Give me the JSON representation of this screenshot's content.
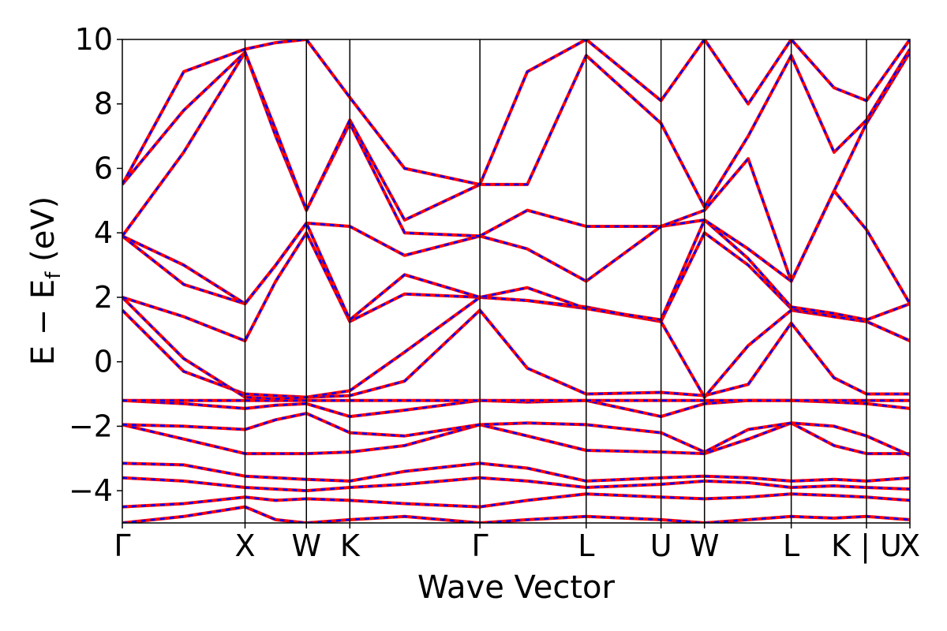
{
  "chart_data": {
    "type": "line",
    "title": "",
    "xlabel": "Wave Vector",
    "ylabel": {
      "prefix": "E − E",
      "subscript": "f",
      "suffix": " (eV)"
    },
    "ylim": [
      -5,
      10
    ],
    "yticks": [
      10,
      8,
      6,
      4,
      2,
      0,
      -2,
      -4
    ],
    "ytick_labels": [
      "10",
      "8",
      "6",
      "4",
      "2",
      "0",
      "−2",
      "−4"
    ],
    "kpath": [
      {
        "label": "Γ",
        "x": 0.0
      },
      {
        "label": "X",
        "x": 1.0
      },
      {
        "label": "W",
        "x": 1.5
      },
      {
        "label": "K",
        "x": 1.854
      },
      {
        "label": "Γ",
        "x": 2.914
      },
      {
        "label": "L",
        "x": 3.78
      },
      {
        "label": "U",
        "x": 4.39
      },
      {
        "label": "W",
        "x": 4.744
      },
      {
        "label": "L",
        "x": 5.451
      },
      {
        "label": "K | U",
        "x": 6.064
      },
      {
        "label": "X",
        "x": 6.418
      }
    ],
    "xlim": [
      0.0,
      6.418
    ],
    "grid": false,
    "legend": "none",
    "colors": {
      "series_a": "#ff0000",
      "series_b": "#0000ff",
      "kpoint_line": "#000000"
    },
    "series": [
      {
        "x": [
          0.0,
          0.5,
          1.0,
          1.25,
          1.5,
          1.854,
          2.3,
          2.914,
          3.3,
          3.78,
          4.39,
          4.744,
          5.1,
          5.451,
          5.8,
          6.064,
          6.418
        ],
        "y": [
          -5.0,
          -4.8,
          -4.5,
          -4.9,
          -5.0,
          -4.9,
          -4.8,
          -5.0,
          -4.9,
          -4.8,
          -4.9,
          -5.0,
          -4.9,
          -4.8,
          -4.85,
          -4.8,
          -4.9
        ]
      },
      {
        "x": [
          0.0,
          0.5,
          1.0,
          1.25,
          1.5,
          1.854,
          2.3,
          2.914,
          3.3,
          3.78,
          4.39,
          4.744,
          5.1,
          5.451,
          5.8,
          6.064,
          6.418
        ],
        "y": [
          -4.5,
          -4.4,
          -4.2,
          -4.3,
          -4.25,
          -4.3,
          -4.4,
          -4.5,
          -4.3,
          -4.1,
          -4.2,
          -4.25,
          -4.2,
          -4.1,
          -4.15,
          -4.2,
          -4.3
        ]
      },
      {
        "x": [
          0.0,
          0.5,
          1.0,
          1.25,
          1.5,
          1.854,
          2.3,
          2.914,
          3.3,
          3.78,
          4.39,
          4.744,
          5.1,
          5.451,
          5.8,
          6.064,
          6.418
        ],
        "y": [
          -3.6,
          -3.7,
          -3.9,
          -3.95,
          -4.0,
          -3.9,
          -3.8,
          -3.6,
          -3.7,
          -3.9,
          -3.8,
          -3.7,
          -3.75,
          -3.9,
          -3.85,
          -3.9,
          -3.95
        ]
      },
      {
        "x": [
          0.0,
          0.5,
          1.0,
          1.25,
          1.5,
          1.854,
          2.3,
          2.914,
          3.3,
          3.78,
          4.39,
          4.744,
          5.1,
          5.451,
          5.8,
          6.064,
          6.418
        ],
        "y": [
          -3.15,
          -3.2,
          -3.55,
          -3.6,
          -3.65,
          -3.7,
          -3.4,
          -3.15,
          -3.3,
          -3.7,
          -3.6,
          -3.55,
          -3.6,
          -3.7,
          -3.65,
          -3.7,
          -3.6
        ]
      },
      {
        "x": [
          0.0,
          0.5,
          1.0,
          1.25,
          1.5,
          1.854,
          2.3,
          2.914,
          3.3,
          3.78,
          4.39,
          4.744,
          5.1,
          5.451,
          5.8,
          6.064,
          6.418
        ],
        "y": [
          -1.95,
          -2.4,
          -2.85,
          -2.85,
          -2.85,
          -2.8,
          -2.6,
          -1.95,
          -2.3,
          -2.75,
          -2.8,
          -2.85,
          -2.4,
          -1.9,
          -2.6,
          -2.85,
          -2.85
        ]
      },
      {
        "x": [
          0.0,
          0.5,
          1.0,
          1.25,
          1.5,
          1.854,
          2.3,
          2.914,
          3.3,
          3.78,
          4.39,
          4.744,
          5.1,
          5.451,
          5.8,
          6.064,
          6.418
        ],
        "y": [
          -1.95,
          -2.0,
          -2.1,
          -1.8,
          -1.6,
          -2.2,
          -2.3,
          -1.95,
          -1.9,
          -1.95,
          -2.2,
          -2.8,
          -2.1,
          -1.9,
          -2.0,
          -2.3,
          -2.9
        ]
      },
      {
        "x": [
          0.0,
          0.5,
          1.0,
          1.25,
          1.5,
          1.854,
          2.3,
          2.914,
          3.3,
          3.78,
          4.39,
          4.744,
          5.1,
          5.451,
          5.8,
          6.064,
          6.418
        ],
        "y": [
          -1.2,
          -1.3,
          -1.45,
          -1.35,
          -1.3,
          -1.7,
          -1.5,
          -1.2,
          -1.25,
          -1.2,
          -1.7,
          -1.3,
          -1.2,
          -1.2,
          -1.25,
          -1.3,
          -1.45
        ]
      },
      {
        "x": [
          0.0,
          0.5,
          1.0,
          1.25,
          1.5,
          1.854,
          2.3,
          2.914,
          3.3,
          3.78,
          4.39,
          4.744,
          5.1,
          5.451,
          5.8,
          6.064,
          6.418
        ],
        "y": [
          -1.2,
          -1.2,
          -1.2,
          -1.2,
          -1.2,
          -1.2,
          -1.2,
          -1.2,
          -1.2,
          -1.2,
          -1.2,
          -1.2,
          -1.2,
          -1.2,
          -1.2,
          -1.2,
          -1.2
        ]
      },
      {
        "x": [
          0.0,
          0.5,
          1.0,
          1.25,
          1.5,
          1.854,
          2.3,
          2.914,
          3.3,
          3.78,
          4.39,
          4.744,
          5.1,
          5.451,
          5.8,
          6.064,
          6.418
        ],
        "y": [
          1.6,
          -0.3,
          -1.0,
          -1.05,
          -1.1,
          -1.05,
          -0.6,
          1.6,
          -0.2,
          -1.0,
          -0.95,
          -1.05,
          -0.7,
          1.2,
          -0.5,
          -1.0,
          -1.0
        ]
      },
      {
        "x": [
          0.0,
          0.5,
          1.0,
          1.25,
          1.5,
          1.854,
          2.3,
          2.914,
          3.3,
          3.78,
          4.39,
          4.744,
          5.1,
          5.451,
          5.8,
          6.064,
          6.418
        ],
        "y": [
          2.0,
          0.1,
          -1.1,
          -1.15,
          -1.1,
          -0.9,
          0.3,
          2.0,
          1.9,
          1.65,
          1.25,
          -1.1,
          0.5,
          1.6,
          1.4,
          1.25,
          0.65
        ]
      },
      {
        "x": [
          0.0,
          0.5,
          1.0,
          1.25,
          1.5,
          1.854,
          2.3,
          2.914,
          3.3,
          3.78,
          4.39,
          4.744,
          5.1,
          5.451,
          5.8,
          6.064,
          6.418
        ],
        "y": [
          2.0,
          1.4,
          0.65,
          2.5,
          4.0,
          1.25,
          2.1,
          2.0,
          1.9,
          1.7,
          1.25,
          4.0,
          3.0,
          1.65,
          1.4,
          1.25,
          0.65
        ]
      },
      {
        "x": [
          0.0,
          0.5,
          1.0,
          1.25,
          1.5,
          1.854,
          2.3,
          2.914,
          3.3,
          3.78,
          4.39,
          4.744,
          5.1,
          5.451,
          5.8,
          6.064,
          6.418
        ],
        "y": [
          3.9,
          2.4,
          1.8,
          3.0,
          4.3,
          1.3,
          2.7,
          2.0,
          2.3,
          1.65,
          1.3,
          4.4,
          3.2,
          1.7,
          1.5,
          1.3,
          1.8
        ]
      },
      {
        "x": [
          0.0,
          0.5,
          1.0,
          1.25,
          1.5,
          1.854,
          2.3,
          2.914,
          3.3,
          3.78,
          4.39,
          4.744,
          5.1,
          5.451,
          5.8,
          6.064,
          6.418
        ],
        "y": [
          3.9,
          3.0,
          1.8,
          3.0,
          4.3,
          4.2,
          3.3,
          3.9,
          4.7,
          4.2,
          4.2,
          4.4,
          3.5,
          2.5,
          5.3,
          4.1,
          1.8
        ]
      },
      {
        "x": [
          0.0,
          0.5,
          1.0,
          1.25,
          1.5,
          1.854,
          2.3,
          2.914,
          3.3,
          3.78,
          4.39,
          4.744,
          5.1,
          5.451,
          5.8,
          6.064,
          6.418
        ],
        "y": [
          3.9,
          6.5,
          9.6,
          7.0,
          4.7,
          7.4,
          4.0,
          3.9,
          3.5,
          2.5,
          4.2,
          4.7,
          6.3,
          2.5,
          5.3,
          7.4,
          9.6
        ]
      },
      {
        "x": [
          0.0,
          0.5,
          1.0,
          1.25,
          1.5,
          1.854,
          2.3,
          2.914,
          3.3,
          3.78,
          4.39,
          4.744,
          5.1,
          5.451,
          5.8,
          6.064,
          6.418
        ],
        "y": [
          5.5,
          7.8,
          9.6,
          7.2,
          4.7,
          7.5,
          4.4,
          5.5,
          5.5,
          9.5,
          7.4,
          4.8,
          7.0,
          9.5,
          6.5,
          7.5,
          9.7
        ]
      },
      {
        "x": [
          0.0,
          0.5,
          1.0,
          1.25,
          1.5,
          1.854,
          2.3,
          2.914,
          3.3,
          3.78,
          4.39,
          4.744,
          5.1,
          5.451,
          5.8,
          6.064,
          6.418
        ],
        "y": [
          5.5,
          9.0,
          9.7,
          9.9,
          10.0,
          8.2,
          6.0,
          5.5,
          9.0,
          10.0,
          8.1,
          10.0,
          8.0,
          10.0,
          8.5,
          8.1,
          10.0
        ]
      }
    ]
  }
}
